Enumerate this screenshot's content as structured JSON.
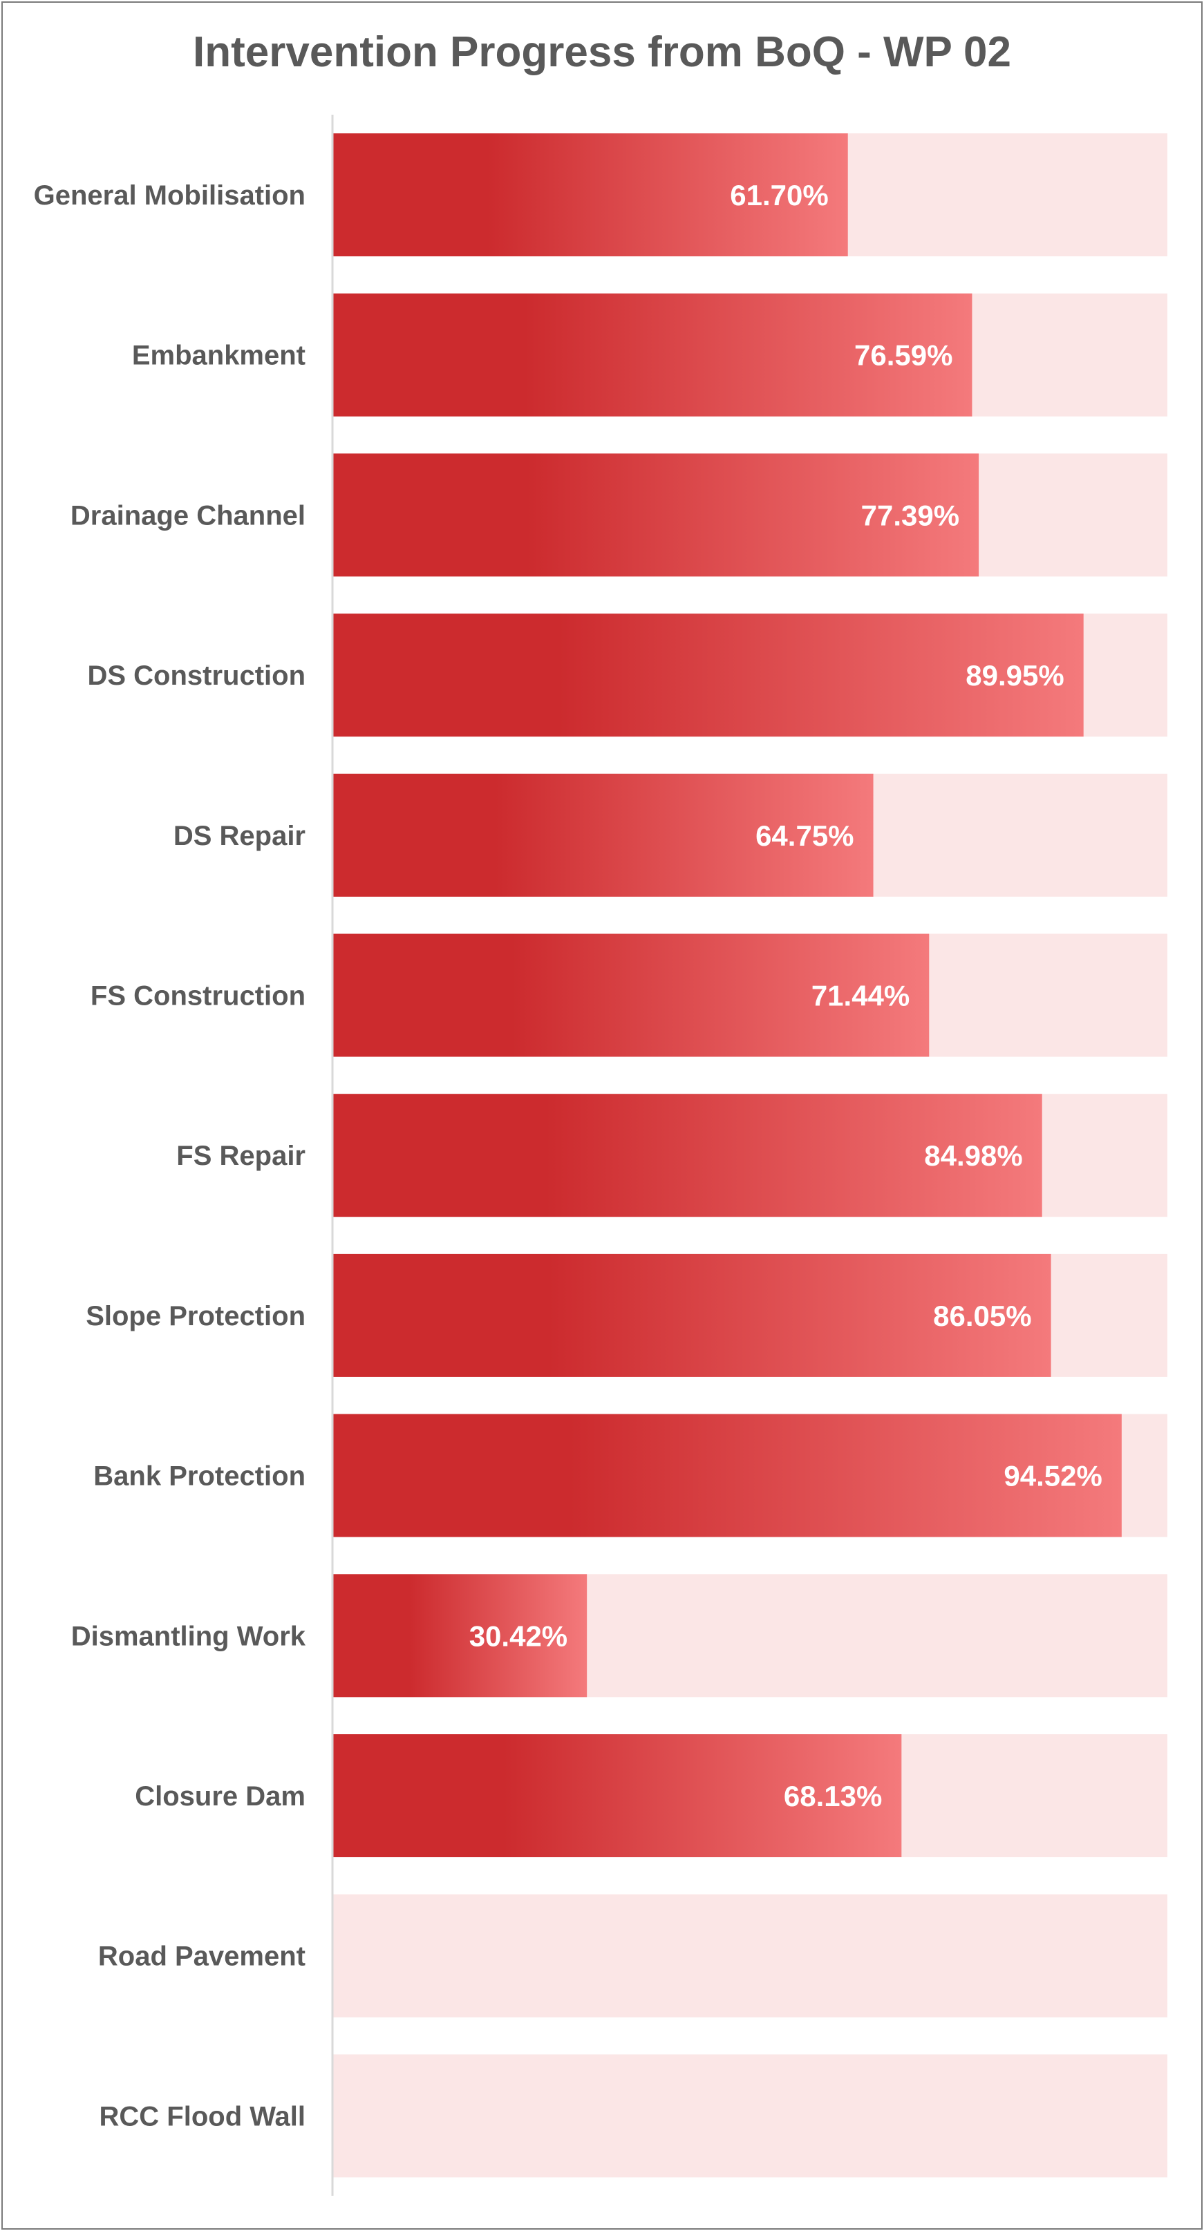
{
  "chart_data": {
    "type": "bar",
    "orientation": "horizontal",
    "title": "Intervention Progress from BoQ - WP 02",
    "xlabel": "",
    "ylabel": "",
    "xlim": [
      0,
      100
    ],
    "unit": "%",
    "grid": false,
    "legend": "none",
    "categories": [
      "General Mobilisation",
      "Embankment",
      "Drainage Channel",
      "DS Construction",
      "DS Repair",
      "FS Construction",
      "FS Repair",
      "Slope Protection",
      "Bank Protection",
      "Dismantling Work",
      "Closure Dam",
      "Road Pavement",
      "RCC Flood Wall"
    ],
    "values": [
      61.7,
      76.59,
      77.39,
      89.95,
      64.75,
      71.44,
      84.98,
      86.05,
      94.52,
      30.42,
      68.13,
      null,
      null
    ],
    "value_labels": [
      "61.70%",
      "76.59%",
      "77.39%",
      "89.95%",
      "64.75%",
      "71.44%",
      "84.98%",
      "86.05%",
      "94.52%",
      "30.42%",
      "68.13%",
      "",
      ""
    ],
    "colors": {
      "bar_start": "#cc2b2e",
      "bar_end": "#f47a7c",
      "track": "#fbe6e6",
      "axis": "#d9d9d9",
      "text": "#595959"
    }
  }
}
